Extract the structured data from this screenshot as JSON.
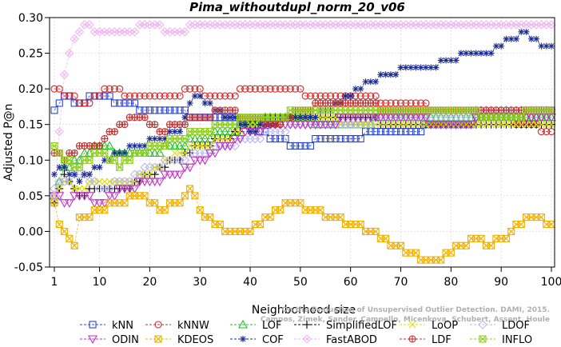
{
  "chart_data": {
    "type": "line",
    "title": "Pima_withoutdupl_norm_20_v06",
    "xlabel": "Neighborhood size",
    "ylabel": "Adjusted P@n",
    "xlim": [
      1,
      100
    ],
    "ylim": [
      -0.05,
      0.3
    ],
    "x_ticks": [
      1,
      10,
      20,
      30,
      40,
      50,
      60,
      70,
      80,
      90,
      100
    ],
    "y_ticks": [
      "-0.05",
      "0.00",
      "0.05",
      "0.10",
      "0.15",
      "0.20",
      "0.25",
      "0.30"
    ],
    "grid": true,
    "legend_position": "bottom",
    "watermark": "Campos, Zimek, Sander, Campello, Micenkova, Schubert, Assent, Houle",
    "watermark2": "On the Evaluation of Unsupervised Outlier Detection. DAMI, 2015.",
    "series": [
      {
        "name": "kNN",
        "color": "#2a44d4",
        "marker": "square",
        "anchors": [
          [
            1,
            0.17
          ],
          [
            3,
            0.19
          ],
          [
            6,
            0.18
          ],
          [
            10,
            0.19
          ],
          [
            15,
            0.18
          ],
          [
            20,
            0.17
          ],
          [
            25,
            0.17
          ],
          [
            30,
            0.16
          ],
          [
            35,
            0.16
          ],
          [
            40,
            0.15
          ],
          [
            45,
            0.13
          ],
          [
            50,
            0.12
          ],
          [
            55,
            0.13
          ],
          [
            60,
            0.13
          ],
          [
            65,
            0.14
          ],
          [
            70,
            0.14
          ],
          [
            80,
            0.15
          ],
          [
            90,
            0.16
          ],
          [
            100,
            0.17
          ]
        ]
      },
      {
        "name": "kNNW",
        "color": "#d42a2a",
        "marker": "circle",
        "anchors": [
          [
            1,
            0.2
          ],
          [
            3,
            0.19
          ],
          [
            8,
            0.18
          ],
          [
            12,
            0.2
          ],
          [
            16,
            0.19
          ],
          [
            20,
            0.19
          ],
          [
            25,
            0.19
          ],
          [
            28,
            0.2
          ],
          [
            32,
            0.19
          ],
          [
            35,
            0.19
          ],
          [
            40,
            0.2
          ],
          [
            48,
            0.2
          ],
          [
            52,
            0.19
          ],
          [
            60,
            0.19
          ],
          [
            70,
            0.18
          ],
          [
            80,
            0.17
          ],
          [
            90,
            0.16
          ],
          [
            100,
            0.14
          ]
        ]
      },
      {
        "name": "LOF",
        "color": "#20c020",
        "marker": "triangle",
        "anchors": [
          [
            1,
            0.05
          ],
          [
            3,
            0.09
          ],
          [
            6,
            0.1
          ],
          [
            10,
            0.12
          ],
          [
            15,
            0.11
          ],
          [
            20,
            0.11
          ],
          [
            25,
            0.12
          ],
          [
            30,
            0.13
          ],
          [
            35,
            0.14
          ],
          [
            40,
            0.15
          ],
          [
            45,
            0.16
          ],
          [
            50,
            0.16
          ],
          [
            55,
            0.15
          ],
          [
            60,
            0.15
          ],
          [
            70,
            0.16
          ],
          [
            80,
            0.16
          ],
          [
            90,
            0.16
          ],
          [
            100,
            0.16
          ]
        ]
      },
      {
        "name": "SimplifiedLOF",
        "color": "#000000",
        "marker": "plus",
        "anchors": [
          [
            1,
            0.04
          ],
          [
            3,
            0.08
          ],
          [
            6,
            0.05
          ],
          [
            10,
            0.06
          ],
          [
            15,
            0.06
          ],
          [
            20,
            0.08
          ],
          [
            25,
            0.1
          ],
          [
            30,
            0.12
          ],
          [
            35,
            0.13
          ],
          [
            40,
            0.15
          ],
          [
            45,
            0.16
          ],
          [
            50,
            0.16
          ],
          [
            55,
            0.16
          ],
          [
            60,
            0.16
          ],
          [
            70,
            0.15
          ],
          [
            80,
            0.15
          ],
          [
            90,
            0.15
          ],
          [
            100,
            0.15
          ]
        ]
      },
      {
        "name": "LoOP",
        "color": "#e0e000",
        "marker": "cross",
        "anchors": [
          [
            1,
            0.05
          ],
          [
            3,
            0.07
          ],
          [
            6,
            0.06
          ],
          [
            10,
            0.07
          ],
          [
            15,
            0.07
          ],
          [
            20,
            0.08
          ],
          [
            25,
            0.11
          ],
          [
            30,
            0.12
          ],
          [
            35,
            0.13
          ],
          [
            40,
            0.15
          ],
          [
            45,
            0.16
          ],
          [
            50,
            0.16
          ],
          [
            55,
            0.16
          ],
          [
            60,
            0.15
          ],
          [
            70,
            0.15
          ],
          [
            80,
            0.15
          ],
          [
            90,
            0.15
          ],
          [
            100,
            0.15
          ]
        ]
      },
      {
        "name": "LDOF",
        "color": "#b8b8f0",
        "marker": "diamond",
        "anchors": [
          [
            1,
            0.06
          ],
          [
            3,
            0.07
          ],
          [
            6,
            0.08
          ],
          [
            10,
            0.06
          ],
          [
            15,
            0.07
          ],
          [
            20,
            0.09
          ],
          [
            25,
            0.1
          ],
          [
            30,
            0.11
          ],
          [
            35,
            0.12
          ],
          [
            40,
            0.13
          ],
          [
            45,
            0.14
          ],
          [
            50,
            0.15
          ],
          [
            55,
            0.15
          ],
          [
            60,
            0.15
          ],
          [
            70,
            0.16
          ],
          [
            80,
            0.16
          ],
          [
            90,
            0.17
          ],
          [
            100,
            0.17
          ]
        ]
      },
      {
        "name": "ODIN",
        "color": "#c030c0",
        "marker": "triangle-down",
        "anchors": [
          [
            1,
            0.05
          ],
          [
            3,
            0.04
          ],
          [
            6,
            0.05
          ],
          [
            10,
            0.04
          ],
          [
            15,
            0.06
          ],
          [
            20,
            0.07
          ],
          [
            25,
            0.08
          ],
          [
            30,
            0.1
          ],
          [
            35,
            0.12
          ],
          [
            40,
            0.14
          ],
          [
            45,
            0.15
          ],
          [
            50,
            0.15
          ],
          [
            55,
            0.15
          ],
          [
            60,
            0.16
          ],
          [
            70,
            0.16
          ],
          [
            80,
            0.15
          ],
          [
            90,
            0.16
          ],
          [
            100,
            0.16
          ]
        ]
      },
      {
        "name": "KDEOS",
        "color": "#f0b000",
        "marker": "square-x",
        "anchors": [
          [
            1,
            0.04
          ],
          [
            2,
            0.01
          ],
          [
            4,
            -0.01
          ],
          [
            5,
            -0.02
          ],
          [
            6,
            0.02
          ],
          [
            8,
            0.02
          ],
          [
            10,
            0.03
          ],
          [
            14,
            0.04
          ],
          [
            18,
            0.05
          ],
          [
            22,
            0.03
          ],
          [
            26,
            0.04
          ],
          [
            28,
            0.06
          ],
          [
            30,
            0.03
          ],
          [
            33,
            0.01
          ],
          [
            36,
            0.0
          ],
          [
            40,
            0.0
          ],
          [
            44,
            0.02
          ],
          [
            48,
            0.04
          ],
          [
            52,
            0.03
          ],
          [
            56,
            0.02
          ],
          [
            60,
            0.01
          ],
          [
            64,
            0.0
          ],
          [
            68,
            -0.02
          ],
          [
            72,
            -0.03
          ],
          [
            76,
            -0.04
          ],
          [
            80,
            -0.03
          ],
          [
            84,
            -0.01
          ],
          [
            88,
            -0.02
          ],
          [
            92,
            0.0
          ],
          [
            96,
            0.02
          ],
          [
            100,
            0.01
          ]
        ]
      },
      {
        "name": "COF",
        "color": "#1a2a90",
        "marker": "asterisk",
        "anchors": [
          [
            1,
            0.08
          ],
          [
            3,
            0.09
          ],
          [
            6,
            0.07
          ],
          [
            10,
            0.09
          ],
          [
            14,
            0.11
          ],
          [
            18,
            0.12
          ],
          [
            22,
            0.13
          ],
          [
            26,
            0.14
          ],
          [
            28,
            0.18
          ],
          [
            30,
            0.19
          ],
          [
            33,
            0.17
          ],
          [
            36,
            0.16
          ],
          [
            40,
            0.14
          ],
          [
            44,
            0.15
          ],
          [
            48,
            0.16
          ],
          [
            52,
            0.16
          ],
          [
            56,
            0.17
          ],
          [
            60,
            0.19
          ],
          [
            64,
            0.21
          ],
          [
            68,
            0.22
          ],
          [
            72,
            0.23
          ],
          [
            76,
            0.23
          ],
          [
            80,
            0.24
          ],
          [
            84,
            0.25
          ],
          [
            88,
            0.25
          ],
          [
            92,
            0.27
          ],
          [
            95,
            0.28
          ],
          [
            98,
            0.26
          ],
          [
            100,
            0.26
          ]
        ]
      },
      {
        "name": "FastABOD",
        "color": "#f0b8f0",
        "marker": "diamond-x",
        "anchors": [
          [
            1,
            0.05
          ],
          [
            3,
            0.22
          ],
          [
            5,
            0.27
          ],
          [
            7,
            0.29
          ],
          [
            10,
            0.28
          ],
          [
            15,
            0.28
          ],
          [
            20,
            0.29
          ],
          [
            25,
            0.28
          ],
          [
            30,
            0.29
          ],
          [
            40,
            0.29
          ],
          [
            50,
            0.29
          ],
          [
            60,
            0.29
          ],
          [
            70,
            0.29
          ],
          [
            80,
            0.29
          ],
          [
            90,
            0.29
          ],
          [
            100,
            0.29
          ]
        ]
      },
      {
        "name": "LDF",
        "color": "#c03030",
        "marker": "circle-plus",
        "anchors": [
          [
            1,
            0.11
          ],
          [
            3,
            0.1
          ],
          [
            6,
            0.12
          ],
          [
            10,
            0.12
          ],
          [
            14,
            0.15
          ],
          [
            18,
            0.16
          ],
          [
            22,
            0.14
          ],
          [
            26,
            0.15
          ],
          [
            30,
            0.16
          ],
          [
            35,
            0.17
          ],
          [
            40,
            0.16
          ],
          [
            45,
            0.15
          ],
          [
            50,
            0.17
          ],
          [
            55,
            0.18
          ],
          [
            60,
            0.18
          ],
          [
            70,
            0.17
          ],
          [
            80,
            0.17
          ],
          [
            90,
            0.17
          ],
          [
            100,
            0.17
          ]
        ]
      },
      {
        "name": "INFLO",
        "color": "#90d020",
        "marker": "square-star",
        "anchors": [
          [
            1,
            0.12
          ],
          [
            3,
            0.1
          ],
          [
            6,
            0.09
          ],
          [
            10,
            0.11
          ],
          [
            14,
            0.09
          ],
          [
            18,
            0.11
          ],
          [
            22,
            0.12
          ],
          [
            26,
            0.13
          ],
          [
            30,
            0.14
          ],
          [
            35,
            0.15
          ],
          [
            40,
            0.16
          ],
          [
            45,
            0.16
          ],
          [
            50,
            0.17
          ],
          [
            55,
            0.17
          ],
          [
            60,
            0.17
          ],
          [
            70,
            0.17
          ],
          [
            80,
            0.17
          ],
          [
            90,
            0.16
          ],
          [
            100,
            0.17
          ]
        ]
      }
    ]
  }
}
